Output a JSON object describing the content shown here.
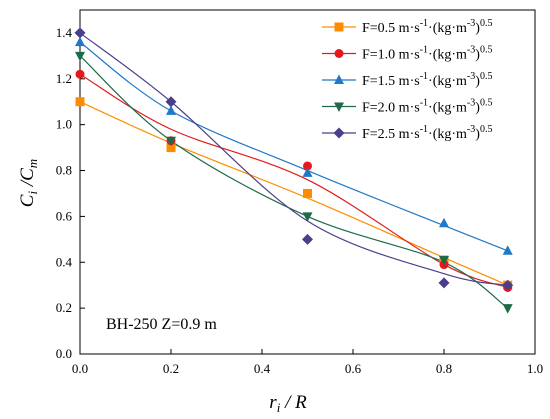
{
  "chart_data": {
    "type": "scatter",
    "xlabel": "r_i / R",
    "ylabel": "C_i /C_m",
    "xlim": [
      0.0,
      1.0
    ],
    "ylim": [
      0.0,
      1.5
    ],
    "xticks": [
      "0.0",
      "0.2",
      "0.4",
      "0.6",
      "0.8",
      "1.0"
    ],
    "yticks": [
      "0.0",
      "0.2",
      "0.4",
      "0.6",
      "0.8",
      "1.0",
      "1.2",
      "1.4"
    ],
    "annotation": "BH-250  Z=0.9 m",
    "legend_position": "top-right",
    "series": [
      {
        "name": "F=0.5 m·s⁻¹·(kg·m⁻³)⁰·⁵",
        "name_base": "F=0.5 m·s",
        "marker": "square",
        "color": "#ff8c00",
        "x": [
          0.0,
          0.2,
          0.5,
          0.8,
          0.94
        ],
        "y": [
          1.1,
          0.9,
          0.7,
          0.41,
          0.3
        ],
        "fit": [
          [
            0.0,
            1.1
          ],
          [
            0.2,
            0.92
          ],
          [
            0.5,
            0.68
          ],
          [
            0.8,
            0.42
          ],
          [
            0.94,
            0.3
          ]
        ]
      },
      {
        "name": "F=1.0 m·s⁻¹·(kg·m⁻³)⁰·⁵",
        "name_base": "F=1.0 m·s",
        "marker": "circle",
        "color": "#e41a1c",
        "x": [
          0.0,
          0.2,
          0.5,
          0.8,
          0.94
        ],
        "y": [
          1.22,
          0.93,
          0.82,
          0.39,
          0.29
        ],
        "fit": [
          [
            0.0,
            1.22
          ],
          [
            0.2,
            0.98
          ],
          [
            0.5,
            0.76
          ],
          [
            0.8,
            0.39
          ],
          [
            0.94,
            0.29
          ]
        ]
      },
      {
        "name": "F=1.5 m·s⁻¹·(kg·m⁻³)⁰·⁵",
        "name_base": "F=1.5 m·s",
        "marker": "triangle",
        "color": "#1f78c8",
        "x": [
          0.0,
          0.2,
          0.5,
          0.8,
          0.94
        ],
        "y": [
          1.36,
          1.06,
          0.79,
          0.57,
          0.45
        ],
        "fit": [
          [
            0.0,
            1.36
          ],
          [
            0.2,
            1.06
          ],
          [
            0.5,
            0.8
          ],
          [
            0.8,
            0.56
          ],
          [
            0.94,
            0.45
          ]
        ]
      },
      {
        "name": "F=2.0 m·s⁻¹·(kg·m⁻³)⁰·⁵",
        "name_base": "F=2.0 m·s",
        "marker": "triangle-down",
        "color": "#1e6b4a",
        "x": [
          0.0,
          0.2,
          0.5,
          0.8,
          0.94
        ],
        "y": [
          1.3,
          0.93,
          0.6,
          0.41,
          0.2
        ],
        "fit": [
          [
            0.0,
            1.3
          ],
          [
            0.2,
            0.93
          ],
          [
            0.5,
            0.6
          ],
          [
            0.8,
            0.4
          ],
          [
            0.94,
            0.2
          ]
        ]
      },
      {
        "name": "F=2.5 m·s⁻¹·(kg·m⁻³)⁰·⁵",
        "name_base": "F=2.5 m·s",
        "marker": "diamond",
        "color": "#4b3f8c",
        "x": [
          0.0,
          0.2,
          0.5,
          0.8,
          0.94
        ],
        "y": [
          1.4,
          1.1,
          0.5,
          0.31,
          0.3
        ],
        "fit": [
          [
            0.0,
            1.4
          ],
          [
            0.2,
            1.1
          ],
          [
            0.5,
            0.58
          ],
          [
            0.8,
            0.35
          ],
          [
            0.94,
            0.3
          ]
        ]
      }
    ]
  }
}
